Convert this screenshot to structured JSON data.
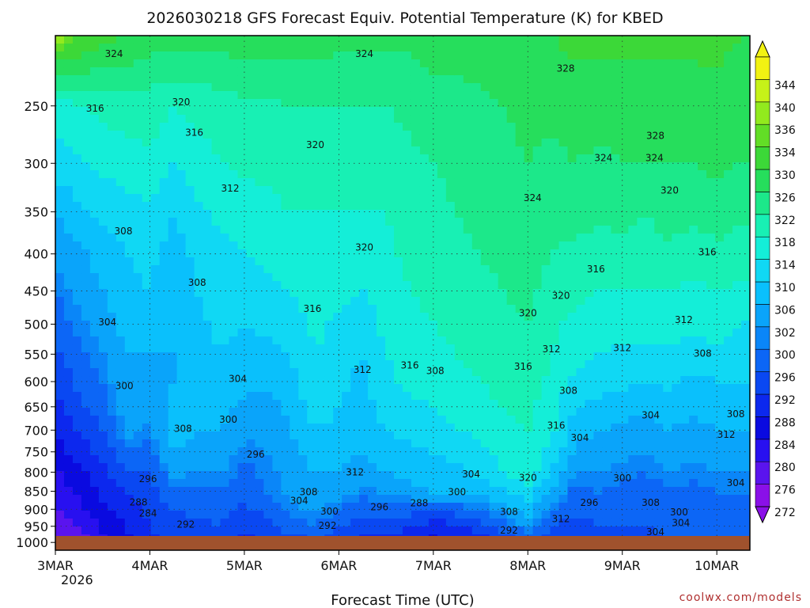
{
  "chart_data": {
    "type": "heatmap",
    "title": "2026030218 GFS Forecast Equiv. Potential Temperature (K) for KBED",
    "xlabel": "Forecast Time (UTC)",
    "ylabel": "",
    "source": "coolwx.com/models",
    "x_ticks": [
      "3MAR",
      "4MAR",
      "5MAR",
      "6MAR",
      "7MAR",
      "8MAR",
      "9MAR",
      "10MAR"
    ],
    "x_year_label": "2026",
    "x_range_days": [
      0,
      7.35
    ],
    "y_ticks": [
      250,
      300,
      350,
      400,
      450,
      500,
      550,
      600,
      650,
      700,
      750,
      800,
      850,
      900,
      950,
      1000
    ],
    "y_range": [
      200,
      1025
    ],
    "grid": true,
    "colorbar_levels": [
      272,
      276,
      280,
      284,
      288,
      292,
      296,
      300,
      302,
      306,
      310,
      314,
      318,
      322,
      326,
      330,
      334,
      336,
      340,
      344
    ],
    "colorbar_colors": [
      "#8a10e8",
      "#5a14ee",
      "#2810f0",
      "#0a0ae0",
      "#0c28ee",
      "#0a48f2",
      "#0c66f6",
      "#0a86f8",
      "#0aa4fa",
      "#0ac0fc",
      "#10d8f4",
      "#14eed8",
      "#18f0b4",
      "#1ce88a",
      "#26de5c",
      "#3cd838",
      "#62de26",
      "#92ea1e",
      "#c6f218",
      "#f2f212"
    ],
    "column_days": [
      0,
      0.25,
      0.5,
      0.75,
      1,
      1.25,
      1.5,
      1.75,
      2,
      2.25,
      2.5,
      2.75,
      3,
      3.25,
      3.5,
      3.75,
      4,
      4.25,
      4.5,
      4.75,
      5,
      5.25,
      5.5,
      5.75,
      6,
      6.25,
      6.5,
      6.75,
      7,
      7.25
    ],
    "column_levels": [
      200,
      250,
      300,
      350,
      400,
      450,
      500,
      550,
      600,
      650,
      700,
      750,
      800,
      850,
      900,
      950,
      1000,
      1020
    ],
    "theta_e": [
      [
        338,
        316,
        312,
        306,
        303,
        300,
        298,
        295,
        293,
        291,
        288,
        286,
        283,
        281,
        279,
        277,
        275,
        274
      ],
      [
        334,
        318,
        313,
        309,
        305,
        303,
        301,
        299,
        297,
        295,
        292,
        290,
        287,
        285,
        283,
        280,
        278,
        277
      ],
      [
        332,
        319,
        315,
        311,
        308,
        306,
        304,
        302,
        300,
        298,
        296,
        293,
        291,
        289,
        287,
        285,
        283,
        282
      ],
      [
        330,
        320,
        316,
        312,
        310,
        309,
        308,
        306,
        305,
        304,
        303,
        300,
        296,
        292,
        290,
        288,
        286,
        285
      ],
      [
        328,
        320,
        317,
        313,
        311,
        310,
        308,
        306,
        305,
        303,
        301,
        299,
        296,
        294,
        293,
        292,
        291,
        290
      ],
      [
        328,
        318,
        314,
        310,
        308,
        307,
        306,
        306,
        306,
        307,
        308,
        306,
        303,
        299,
        296,
        294,
        292,
        291
      ],
      [
        328,
        319,
        316,
        313,
        311,
        310,
        309,
        308,
        308,
        307,
        306,
        304,
        302,
        299,
        297,
        295,
        293,
        292
      ],
      [
        328,
        320,
        318,
        315,
        313,
        312,
        311,
        310,
        309,
        308,
        306,
        304,
        302,
        300,
        298,
        296,
        294,
        292
      ],
      [
        328,
        321,
        319,
        316,
        314,
        312,
        310,
        308,
        307,
        305,
        303,
        301,
        299,
        297,
        295,
        293,
        291,
        290
      ],
      [
        328,
        321,
        319,
        317,
        315,
        313,
        311,
        309,
        307,
        305,
        303,
        302,
        301,
        300,
        298,
        294,
        292,
        291
      ],
      [
        328,
        322,
        320,
        318,
        316,
        314,
        312,
        310,
        309,
        307,
        306,
        305,
        304,
        303,
        301,
        298,
        294,
        292
      ],
      [
        328,
        322,
        320,
        318,
        317,
        316,
        315,
        314,
        313,
        312,
        310,
        308,
        306,
        305,
        303,
        300,
        296,
        294
      ],
      [
        327,
        322,
        320,
        318,
        317,
        315,
        313,
        312,
        311,
        310,
        309,
        308,
        306,
        304,
        300,
        296,
        292,
        291
      ],
      [
        327,
        322,
        320,
        318,
        316,
        314,
        312,
        310,
        309,
        308,
        307,
        306,
        304,
        301,
        297,
        294,
        291,
        290
      ],
      [
        327,
        322,
        320,
        318,
        317,
        316,
        315,
        314,
        313,
        312,
        310,
        308,
        306,
        303,
        298,
        294,
        291,
        290
      ],
      [
        327,
        323,
        321,
        320,
        319,
        318,
        317,
        316,
        315,
        313,
        311,
        309,
        307,
        305,
        298,
        292,
        288,
        287
      ],
      [
        328,
        324,
        322,
        321,
        320,
        319,
        318,
        317,
        316,
        314,
        312,
        310,
        308,
        306,
        297,
        290,
        287,
        286
      ],
      [
        328,
        324,
        323,
        322,
        321,
        320,
        319,
        318,
        317,
        316,
        314,
        312,
        309,
        306,
        298,
        291,
        288,
        287
      ],
      [
        329,
        325,
        324,
        323,
        322,
        321,
        320,
        319,
        318,
        317,
        315,
        313,
        311,
        307,
        300,
        294,
        290,
        289
      ],
      [
        329,
        326,
        325,
        324,
        323,
        322,
        321,
        320,
        319,
        318,
        317,
        316,
        314,
        310,
        304,
        298,
        293,
        292
      ],
      [
        330,
        327,
        326,
        325,
        324,
        323,
        322,
        321,
        320,
        319,
        318,
        317,
        316,
        313,
        308,
        303,
        297,
        295
      ],
      [
        330,
        327,
        325,
        323,
        322,
        320,
        319,
        318,
        317,
        316,
        315,
        313,
        310,
        305,
        300,
        296,
        292,
        291
      ],
      [
        331,
        328,
        326,
        324,
        321,
        319,
        317,
        315,
        313,
        310,
        308,
        305,
        302,
        299,
        297,
        294,
        292,
        291
      ],
      [
        331,
        328,
        325,
        323,
        320,
        318,
        316,
        314,
        312,
        309,
        306,
        304,
        302,
        300,
        298,
        296,
        294,
        293
      ],
      [
        331,
        328,
        326,
        323,
        321,
        318,
        316,
        313,
        311,
        308,
        305,
        303,
        301,
        299,
        297,
        296,
        295,
        294
      ],
      [
        331,
        328,
        326,
        322,
        320,
        318,
        315,
        313,
        310,
        307,
        304,
        302,
        300,
        298,
        297,
        296,
        295,
        294
      ],
      [
        331,
        328,
        326,
        324,
        321,
        318,
        316,
        313,
        311,
        308,
        306,
        304,
        302,
        300,
        298,
        297,
        296,
        295
      ],
      [
        331,
        328,
        326,
        323,
        320,
        317,
        315,
        312,
        309,
        307,
        305,
        303,
        301,
        299,
        298,
        297,
        296,
        295
      ],
      [
        331,
        329,
        327,
        324,
        321,
        318,
        316,
        313,
        310,
        308,
        306,
        304,
        302,
        300,
        299,
        298,
        297,
        296
      ],
      [
        330,
        328,
        326,
        323,
        320,
        317,
        314,
        312,
        310,
        308,
        306,
        304,
        302,
        300,
        299,
        298,
        297,
        296
      ]
    ],
    "contour_labels": [
      {
        "text": "324",
        "day": 0.62,
        "p": 212
      },
      {
        "text": "324",
        "day": 3.27,
        "p": 212
      },
      {
        "text": "328",
        "day": 5.4,
        "p": 222
      },
      {
        "text": "316",
        "day": 0.42,
        "p": 252
      },
      {
        "text": "320",
        "day": 1.33,
        "p": 247
      },
      {
        "text": "316",
        "day": 1.47,
        "p": 272
      },
      {
        "text": "320",
        "day": 2.75,
        "p": 283
      },
      {
        "text": "328",
        "day": 6.35,
        "p": 275
      },
      {
        "text": "324",
        "day": 5.8,
        "p": 295
      },
      {
        "text": "324",
        "day": 6.34,
        "p": 295
      },
      {
        "text": "312",
        "day": 1.85,
        "p": 325
      },
      {
        "text": "324",
        "day": 5.05,
        "p": 335
      },
      {
        "text": "320",
        "day": 6.5,
        "p": 327
      },
      {
        "text": "308",
        "day": 0.72,
        "p": 372
      },
      {
        "text": "320",
        "day": 3.27,
        "p": 392
      },
      {
        "text": "316",
        "day": 6.9,
        "p": 398
      },
      {
        "text": "316",
        "day": 5.72,
        "p": 420
      },
      {
        "text": "308",
        "day": 1.5,
        "p": 438
      },
      {
        "text": "320",
        "day": 5.35,
        "p": 457
      },
      {
        "text": "316",
        "day": 2.72,
        "p": 476
      },
      {
        "text": "320",
        "day": 5.0,
        "p": 483
      },
      {
        "text": "304",
        "day": 0.55,
        "p": 497
      },
      {
        "text": "312",
        "day": 6.65,
        "p": 493
      },
      {
        "text": "312",
        "day": 5.25,
        "p": 541
      },
      {
        "text": "312",
        "day": 6.0,
        "p": 539
      },
      {
        "text": "308",
        "day": 6.85,
        "p": 549
      },
      {
        "text": "316",
        "day": 3.75,
        "p": 570
      },
      {
        "text": "312",
        "day": 3.25,
        "p": 578
      },
      {
        "text": "308",
        "day": 4.02,
        "p": 580
      },
      {
        "text": "316",
        "day": 4.95,
        "p": 572
      },
      {
        "text": "304",
        "day": 1.93,
        "p": 595
      },
      {
        "text": "300",
        "day": 0.73,
        "p": 608
      },
      {
        "text": "308",
        "day": 5.43,
        "p": 618
      },
      {
        "text": "304",
        "day": 6.3,
        "p": 668
      },
      {
        "text": "308",
        "day": 7.2,
        "p": 665
      },
      {
        "text": "300",
        "day": 1.83,
        "p": 677
      },
      {
        "text": "308",
        "day": 1.35,
        "p": 697
      },
      {
        "text": "316",
        "day": 5.3,
        "p": 690
      },
      {
        "text": "304",
        "day": 5.55,
        "p": 717
      },
      {
        "text": "312",
        "day": 7.1,
        "p": 710
      },
      {
        "text": "296",
        "day": 2.12,
        "p": 756
      },
      {
        "text": "304",
        "day": 4.4,
        "p": 805
      },
      {
        "text": "312",
        "day": 3.17,
        "p": 800
      },
      {
        "text": "296",
        "day": 0.98,
        "p": 817
      },
      {
        "text": "320",
        "day": 5.0,
        "p": 814
      },
      {
        "text": "300",
        "day": 6.0,
        "p": 815
      },
      {
        "text": "304",
        "day": 7.2,
        "p": 828
      },
      {
        "text": "308",
        "day": 2.68,
        "p": 852
      },
      {
        "text": "300",
        "day": 4.25,
        "p": 852
      },
      {
        "text": "304",
        "day": 2.58,
        "p": 876
      },
      {
        "text": "288",
        "day": 0.88,
        "p": 880
      },
      {
        "text": "296",
        "day": 5.65,
        "p": 881
      },
      {
        "text": "308",
        "day": 6.3,
        "p": 881
      },
      {
        "text": "288",
        "day": 3.85,
        "p": 883
      },
      {
        "text": "296",
        "day": 3.43,
        "p": 894
      },
      {
        "text": "300",
        "day": 2.9,
        "p": 906
      },
      {
        "text": "284",
        "day": 0.98,
        "p": 912
      },
      {
        "text": "308",
        "day": 4.8,
        "p": 907
      },
      {
        "text": "300",
        "day": 6.6,
        "p": 908
      },
      {
        "text": "312",
        "day": 5.35,
        "p": 928
      },
      {
        "text": "292",
        "day": 1.38,
        "p": 944
      },
      {
        "text": "292",
        "day": 2.88,
        "p": 948
      },
      {
        "text": "304",
        "day": 6.62,
        "p": 940
      },
      {
        "text": "292",
        "day": 4.8,
        "p": 962
      },
      {
        "text": "304",
        "day": 6.35,
        "p": 968
      }
    ]
  }
}
